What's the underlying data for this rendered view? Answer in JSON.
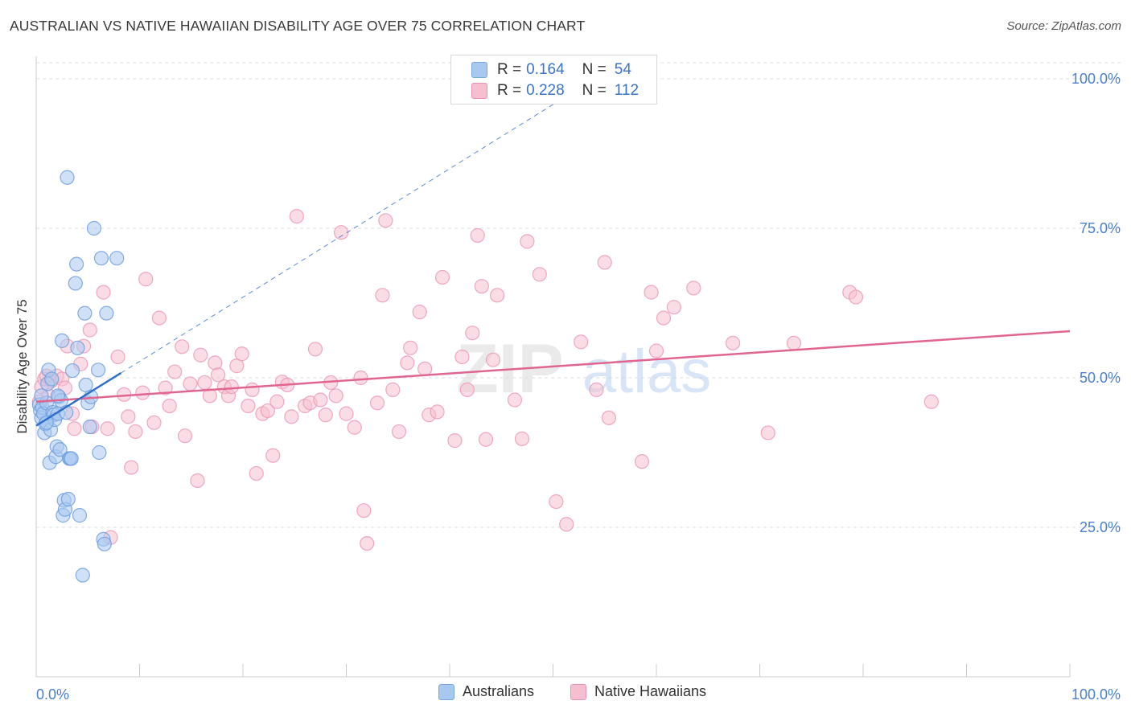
{
  "title": "AUSTRALIAN VS NATIVE HAWAIIAN DISABILITY AGE OVER 75 CORRELATION CHART",
  "source": "Source: ZipAtlas.com",
  "watermark": {
    "zip": "ZIP",
    "atlas": "atlas"
  },
  "legend": {
    "rows": [
      {
        "r_label": "R =",
        "r_value": "0.164",
        "n_label": "N =",
        "n_value": "54",
        "color": "#a9c8f0",
        "border": "#7aa6de"
      },
      {
        "r_label": "R =",
        "r_value": "0.228",
        "n_label": "N =",
        "n_value": "112",
        "color": "#f6bfd0",
        "border": "#e992b0"
      }
    ]
  },
  "bottom_legend": [
    {
      "label": "Australians",
      "color": "#a9c8f0",
      "border": "#7aa6de"
    },
    {
      "label": "Native Hawaiians",
      "color": "#f6bfd0",
      "border": "#e992b0"
    }
  ],
  "chart_data": {
    "type": "scatter",
    "title": "AUSTRALIAN VS NATIVE HAWAIIAN DISABILITY AGE OVER 75 CORRELATION CHART",
    "xlabel": "",
    "ylabel": "Disability Age Over 75",
    "xlim": [
      0,
      100
    ],
    "ylim": [
      0,
      105
    ],
    "x_tick_labels": [
      "0.0%",
      "100.0%"
    ],
    "y_ticks": [
      25,
      50,
      75,
      100
    ],
    "y_tick_labels": [
      "25.0%",
      "50.0%",
      "75.0%",
      "100.0%"
    ],
    "grid": true,
    "legend_position": "top-center",
    "series": [
      {
        "name": "Australians",
        "color": "#6e9fdf",
        "fill": "#a9c8f0",
        "trend": {
          "x": [
            0,
            8.2
          ],
          "y": [
            42.0,
            50.8
          ],
          "extended_to": [
            54,
            100
          ],
          "color": "#2f6fcc"
        },
        "points": [
          [
            0.3,
            45.5
          ],
          [
            0.4,
            44.5
          ],
          [
            0.5,
            43.3
          ],
          [
            0.6,
            45.0
          ],
          [
            0.7,
            44.0
          ],
          [
            0.8,
            40.8
          ],
          [
            0.9,
            42.3
          ],
          [
            1.0,
            45.8
          ],
          [
            1.1,
            49.0
          ],
          [
            1.2,
            51.3
          ],
          [
            1.3,
            35.8
          ],
          [
            1.4,
            41.3
          ],
          [
            1.5,
            49.8
          ],
          [
            1.6,
            44.2
          ],
          [
            1.7,
            43.8
          ],
          [
            1.8,
            43.0
          ],
          [
            1.9,
            36.8
          ],
          [
            2.0,
            38.5
          ],
          [
            2.1,
            44.0
          ],
          [
            2.2,
            46.8
          ],
          [
            2.3,
            38.0
          ],
          [
            2.4,
            46.2
          ],
          [
            2.5,
            56.2
          ],
          [
            2.6,
            27.0
          ],
          [
            2.7,
            29.5
          ],
          [
            2.8,
            28.0
          ],
          [
            2.9,
            44.2
          ],
          [
            3.0,
            83.5
          ],
          [
            3.1,
            29.7
          ],
          [
            3.2,
            36.5
          ],
          [
            3.3,
            36.5
          ],
          [
            3.4,
            36.5
          ],
          [
            3.5,
            51.2
          ],
          [
            3.8,
            65.8
          ],
          [
            3.9,
            69.0
          ],
          [
            4.2,
            27.0
          ],
          [
            4.5,
            17.0
          ],
          [
            4.7,
            60.8
          ],
          [
            4.8,
            48.8
          ],
          [
            5.0,
            45.8
          ],
          [
            5.2,
            41.8
          ],
          [
            5.3,
            46.8
          ],
          [
            5.6,
            75.0
          ],
          [
            6.0,
            51.3
          ],
          [
            6.1,
            37.5
          ],
          [
            6.3,
            70.0
          ],
          [
            6.5,
            23.0
          ],
          [
            6.6,
            22.2
          ],
          [
            6.8,
            60.8
          ],
          [
            7.8,
            70.0
          ],
          [
            2.1,
            47.0
          ],
          [
            0.5,
            47.0
          ],
          [
            1.0,
            42.5
          ],
          [
            4.0,
            55.0
          ]
        ]
      },
      {
        "name": "Native Hawaiians",
        "color": "#ec9ab6",
        "fill": "#f6bfd0",
        "trend": {
          "x": [
            0,
            100
          ],
          "y": [
            46.0,
            57.8
          ],
          "color": "#e0668f"
        },
        "points": [
          [
            0.5,
            48.5
          ],
          [
            0.8,
            49.8
          ],
          [
            1.0,
            50.3
          ],
          [
            1.5,
            49.5
          ],
          [
            2.0,
            50.3
          ],
          [
            2.5,
            49.8
          ],
          [
            2.8,
            48.3
          ],
          [
            3.0,
            55.3
          ],
          [
            3.5,
            44.0
          ],
          [
            3.7,
            41.5
          ],
          [
            4.3,
            52.3
          ],
          [
            4.6,
            55.3
          ],
          [
            5.2,
            58.0
          ],
          [
            5.4,
            41.8
          ],
          [
            6.5,
            64.3
          ],
          [
            6.9,
            41.5
          ],
          [
            7.2,
            23.3
          ],
          [
            7.9,
            53.5
          ],
          [
            8.5,
            47.2
          ],
          [
            8.9,
            43.5
          ],
          [
            9.2,
            35.0
          ],
          [
            9.6,
            41.0
          ],
          [
            10.3,
            47.5
          ],
          [
            10.6,
            66.5
          ],
          [
            11.4,
            42.5
          ],
          [
            11.9,
            60.0
          ],
          [
            12.5,
            48.3
          ],
          [
            12.9,
            45.3
          ],
          [
            13.4,
            51.0
          ],
          [
            14.1,
            55.2
          ],
          [
            14.4,
            40.3
          ],
          [
            14.9,
            49.0
          ],
          [
            15.6,
            32.8
          ],
          [
            15.9,
            53.8
          ],
          [
            16.3,
            49.2
          ],
          [
            16.8,
            47.0
          ],
          [
            17.3,
            52.5
          ],
          [
            17.6,
            50.5
          ],
          [
            18.2,
            48.5
          ],
          [
            18.6,
            47.0
          ],
          [
            18.9,
            48.5
          ],
          [
            19.4,
            52.0
          ],
          [
            19.9,
            54.0
          ],
          [
            20.5,
            45.3
          ],
          [
            20.9,
            48.0
          ],
          [
            21.3,
            34.0
          ],
          [
            21.9,
            44.0
          ],
          [
            22.4,
            44.5
          ],
          [
            22.9,
            37.0
          ],
          [
            23.3,
            46.0
          ],
          [
            23.8,
            49.3
          ],
          [
            24.3,
            48.8
          ],
          [
            24.7,
            43.5
          ],
          [
            25.2,
            77.0
          ],
          [
            26.0,
            45.3
          ],
          [
            26.5,
            45.8
          ],
          [
            27.0,
            54.8
          ],
          [
            27.5,
            46.3
          ],
          [
            28.0,
            43.8
          ],
          [
            28.5,
            49.2
          ],
          [
            29.0,
            47.0
          ],
          [
            29.5,
            74.3
          ],
          [
            30.0,
            44.0
          ],
          [
            30.8,
            41.7
          ],
          [
            31.4,
            50.0
          ],
          [
            31.7,
            27.8
          ],
          [
            32.0,
            22.3
          ],
          [
            33.0,
            45.8
          ],
          [
            33.5,
            63.8
          ],
          [
            33.8,
            76.3
          ],
          [
            34.5,
            48.0
          ],
          [
            35.1,
            41.0
          ],
          [
            35.9,
            52.5
          ],
          [
            36.2,
            55.0
          ],
          [
            37.1,
            61.0
          ],
          [
            37.6,
            51.5
          ],
          [
            38.0,
            43.8
          ],
          [
            38.8,
            44.3
          ],
          [
            39.3,
            66.8
          ],
          [
            40.5,
            39.5
          ],
          [
            41.2,
            53.5
          ],
          [
            41.7,
            48.0
          ],
          [
            42.2,
            57.5
          ],
          [
            42.7,
            73.8
          ],
          [
            43.1,
            65.3
          ],
          [
            43.5,
            39.7
          ],
          [
            44.2,
            53.0
          ],
          [
            44.6,
            63.8
          ],
          [
            46.3,
            46.3
          ],
          [
            47.5,
            72.8
          ],
          [
            48.7,
            67.3
          ],
          [
            50.3,
            29.3
          ],
          [
            51.3,
            25.5
          ],
          [
            52.7,
            56.0
          ],
          [
            54.2,
            48.0
          ],
          [
            55.0,
            69.3
          ],
          [
            55.4,
            43.3
          ],
          [
            58.6,
            36.0
          ],
          [
            59.5,
            64.3
          ],
          [
            60.0,
            54.5
          ],
          [
            60.7,
            60.0
          ],
          [
            61.7,
            61.8
          ],
          [
            63.6,
            65.0
          ],
          [
            67.4,
            55.8
          ],
          [
            70.8,
            40.8
          ],
          [
            73.3,
            55.8
          ],
          [
            78.7,
            64.3
          ],
          [
            79.3,
            63.5
          ],
          [
            86.6,
            46.0
          ],
          [
            0.3,
            46.0
          ],
          [
            1.2,
            47.0
          ],
          [
            47.0,
            39.8
          ]
        ]
      }
    ]
  }
}
